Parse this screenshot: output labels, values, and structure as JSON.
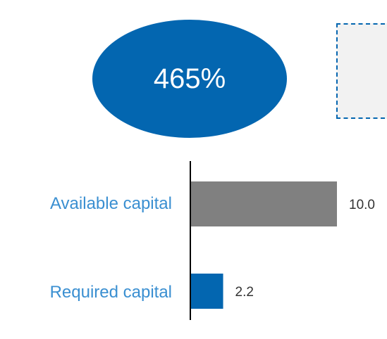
{
  "ratio": {
    "value_text": "465%",
    "color": "#0366b0"
  },
  "colors": {
    "available": "#808080",
    "required": "#0366b0",
    "category_label": "#3a8fd1",
    "value_label": "#333333",
    "axis": "#000000"
  },
  "chart_data": {
    "type": "bar",
    "orientation": "horizontal",
    "categories": [
      "Available capital",
      "Required capital"
    ],
    "values": [
      10.0,
      2.2
    ],
    "value_labels": [
      "10.0",
      "2.2"
    ],
    "title": "",
    "xlabel": "",
    "ylabel": "",
    "xlim": [
      0,
      10.0
    ],
    "grid": false,
    "legend": "none"
  }
}
